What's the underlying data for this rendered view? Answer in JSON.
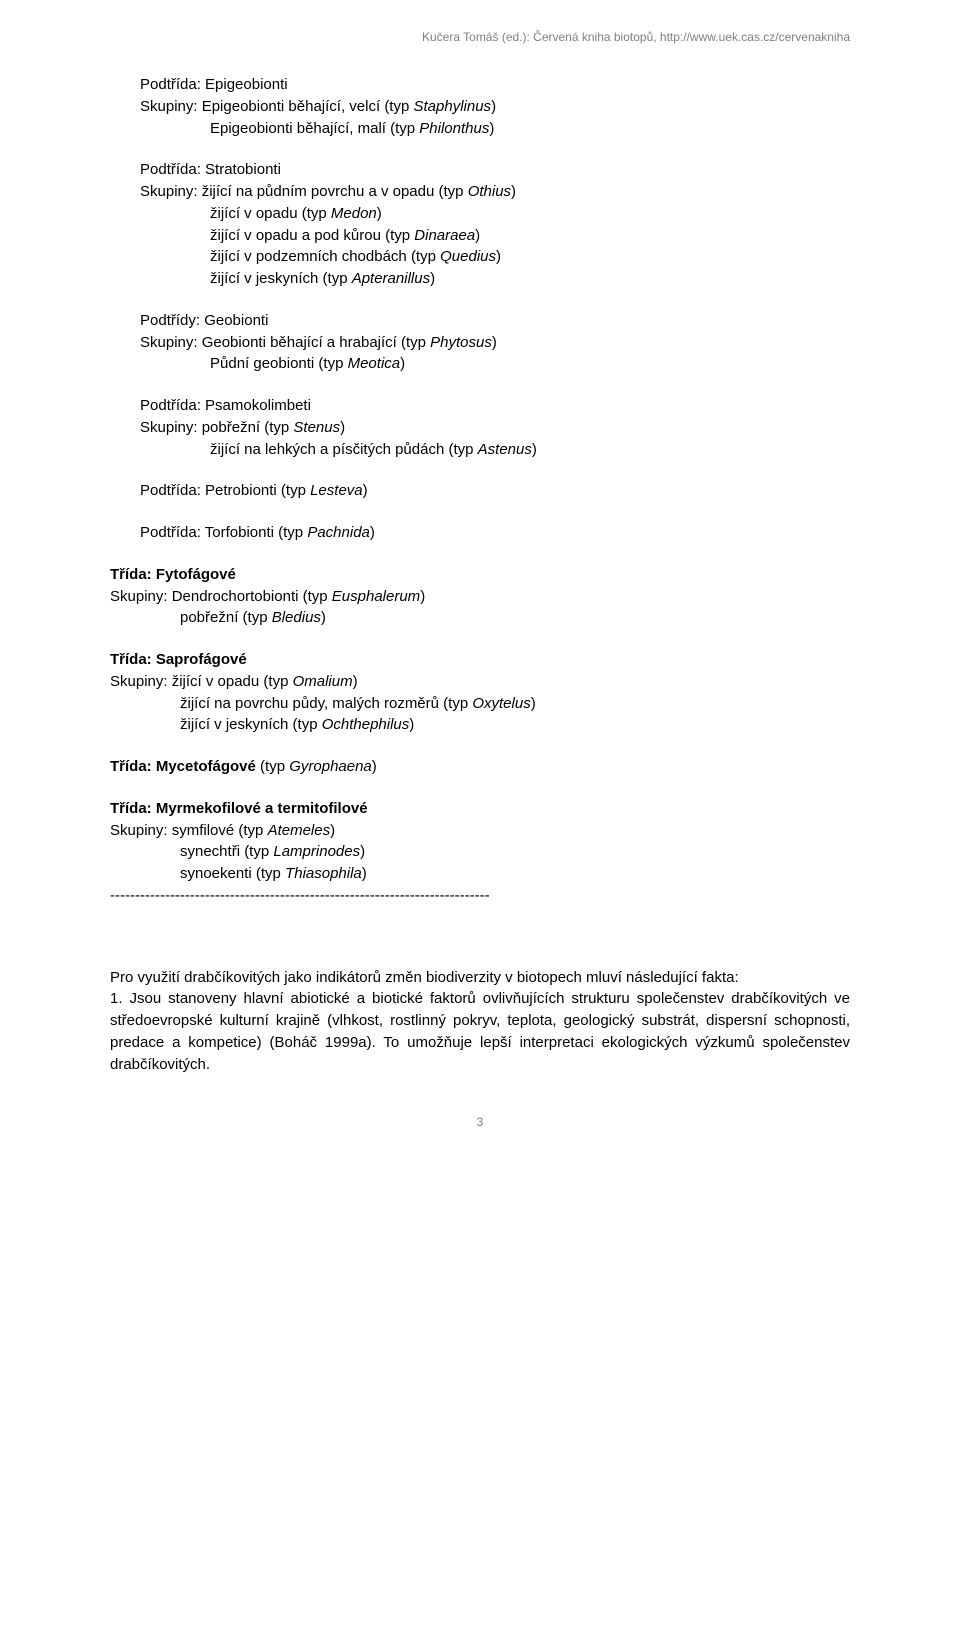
{
  "header": {
    "text": "Kučera Tomáš (ed.): Červená kniha biotopů, http://www.uek.cas.cz/cervenakniha"
  },
  "sections": [
    {
      "type": "block",
      "lines": [
        {
          "segments": [
            {
              "t": "Podtřída: Epigeobionti"
            }
          ]
        },
        {
          "segments": [
            {
              "t": "Skupiny: Epigeobionti běhající, velcí (typ "
            },
            {
              "t": "Staphylinus",
              "i": true
            },
            {
              "t": ")"
            }
          ]
        },
        {
          "indent": "indent1",
          "segments": [
            {
              "t": "Epigeobionti běhající, malí (typ "
            },
            {
              "t": "Philonthus",
              "i": true
            },
            {
              "t": ")"
            }
          ]
        }
      ]
    },
    {
      "type": "block",
      "lines": [
        {
          "segments": [
            {
              "t": "Podtřída: Stratobionti"
            }
          ]
        },
        {
          "segments": [
            {
              "t": "Skupiny: žijící na půdním povrchu a v opadu (typ "
            },
            {
              "t": "Othius",
              "i": true
            },
            {
              "t": ")"
            }
          ]
        },
        {
          "indent": "indent1",
          "segments": [
            {
              "t": "žijící v opadu (typ "
            },
            {
              "t": "Medon",
              "i": true
            },
            {
              "t": ")"
            }
          ]
        },
        {
          "indent": "indent1",
          "segments": [
            {
              "t": "žijící v opadu a pod kůrou  (typ "
            },
            {
              "t": "Dinaraea",
              "i": true
            },
            {
              "t": ")"
            }
          ]
        },
        {
          "indent": "indent1",
          "segments": [
            {
              "t": "žijící v podzemních chodbách (typ "
            },
            {
              "t": "Quedius",
              "i": true
            },
            {
              "t": ")"
            }
          ]
        },
        {
          "indent": "indent1",
          "segments": [
            {
              "t": "žijící v jeskyních (typ "
            },
            {
              "t": "Apteranillus",
              "i": true
            },
            {
              "t": ")"
            }
          ]
        }
      ]
    },
    {
      "type": "block",
      "lines": [
        {
          "segments": [
            {
              "t": "Podtřídy: Geobionti"
            }
          ]
        },
        {
          "segments": [
            {
              "t": "Skupiny: Geobionti běhající a hrabající (typ "
            },
            {
              "t": "Phytosus",
              "i": true
            },
            {
              "t": ")"
            }
          ]
        },
        {
          "indent": "indent1",
          "segments": [
            {
              "t": "Půdní geobionti (typ "
            },
            {
              "t": "Meotica",
              "i": true
            },
            {
              "t": ")"
            }
          ]
        }
      ]
    },
    {
      "type": "block",
      "lines": [
        {
          "segments": [
            {
              "t": "Podtřída: Psamokolimbeti"
            }
          ]
        },
        {
          "segments": [
            {
              "t": "Skupiny: pobřežní (typ "
            },
            {
              "t": "Stenus",
              "i": true
            },
            {
              "t": ")"
            }
          ]
        },
        {
          "indent": "indent1",
          "segments": [
            {
              "t": "žijící na lehkých a písčitých půdách (typ "
            },
            {
              "t": "Astenus",
              "i": true
            },
            {
              "t": ")"
            }
          ]
        }
      ]
    },
    {
      "type": "block",
      "lines": [
        {
          "segments": [
            {
              "t": "Podtřída: Petrobionti (typ "
            },
            {
              "t": "Lesteva",
              "i": true
            },
            {
              "t": ")"
            }
          ]
        }
      ]
    },
    {
      "type": "block",
      "lines": [
        {
          "segments": [
            {
              "t": "Podtřída: Torfobionti (typ "
            },
            {
              "t": "Pachnida",
              "i": true
            },
            {
              "t": ")"
            }
          ]
        }
      ]
    },
    {
      "type": "block",
      "lines": [
        {
          "segments": [
            {
              "t": "Třída:  Fytofágové",
              "b": true
            }
          ],
          "noindent": true
        },
        {
          "segments": [
            {
              "t": "Skupiny: Dendrochortobionti (typ "
            },
            {
              "t": "Eusphalerum",
              "i": true
            },
            {
              "t": ")"
            }
          ]
        },
        {
          "indent": "indent1",
          "segments": [
            {
              "t": "pobřežní (typ "
            },
            {
              "t": "Bledius",
              "i": true
            },
            {
              "t": ")"
            }
          ]
        }
      ],
      "outdent": true
    },
    {
      "type": "block",
      "lines": [
        {
          "segments": [
            {
              "t": "Třída:  Saprofágové",
              "b": true
            }
          ],
          "noindent": true
        },
        {
          "segments": [
            {
              "t": "Skupiny: žijící v opadu (typ "
            },
            {
              "t": "Omalium",
              "i": true
            },
            {
              "t": ")"
            }
          ]
        },
        {
          "indent": "indent1",
          "segments": [
            {
              "t": "žijící na povrchu půdy, malých rozměrů (typ "
            },
            {
              "t": "Oxytelus",
              "i": true
            },
            {
              "t": ")"
            }
          ]
        },
        {
          "indent": "indent1",
          "segments": [
            {
              "t": "žijící v jeskyních (typ "
            },
            {
              "t": "Ochthephilus",
              "i": true
            },
            {
              "t": ")"
            }
          ]
        }
      ],
      "outdent": true
    },
    {
      "type": "block",
      "lines": [
        {
          "segments": [
            {
              "t": "Třída: Mycetofágové",
              "b": true
            },
            {
              "t": " (typ "
            },
            {
              "t": "Gyrophaena",
              "i": true
            },
            {
              "t": ")"
            }
          ],
          "noindent": true
        }
      ],
      "outdent": true
    },
    {
      "type": "block",
      "lines": [
        {
          "segments": [
            {
              "t": "Třída: Myrmekofilové a termitofilové",
              "b": true
            }
          ],
          "noindent": true
        },
        {
          "segments": [
            {
              "t": "Skupiny: symfilové (typ "
            },
            {
              "t": "Atemeles",
              "i": true
            },
            {
              "t": ")"
            }
          ]
        },
        {
          "indent": "indent1",
          "segments": [
            {
              "t": "synechtři (typ "
            },
            {
              "t": "Lamprinodes",
              "i": true
            },
            {
              "t": ")"
            }
          ]
        },
        {
          "indent": "indent1",
          "segments": [
            {
              "t": "synoekenti (typ "
            },
            {
              "t": "Thiasophila",
              "i": true
            },
            {
              "t": ")"
            }
          ]
        }
      ],
      "outdent": true,
      "nomargin": true
    }
  ],
  "separator": "----------------------------------------------------------------------------",
  "paragraph": {
    "lines": [
      {
        "segments": [
          {
            "t": "Pro  využití  drabčíkovitých  jako  indikátorů  změn  biodiverzity  v biotopech mluví následující fakta:"
          }
        ]
      },
      {
        "segments": [
          {
            "t": "1.  Jsou  stanoveny  hlavní  abiotické  a  biotické  faktorů  ovlivňujících strukturu společenstev drabčíkovitých ve středoevropské kulturní krajině (vlhkost,  rostlinný  pokryv,  teplota,  geologický  substrát,  dispersní schopnosti,  predace  a  kompetice)  (Boháč  1999a).  To  umožňuje  lepší interpretaci ekologických výzkumů společenstev drabčíkovitých."
          }
        ]
      }
    ]
  },
  "page_number": "3"
}
